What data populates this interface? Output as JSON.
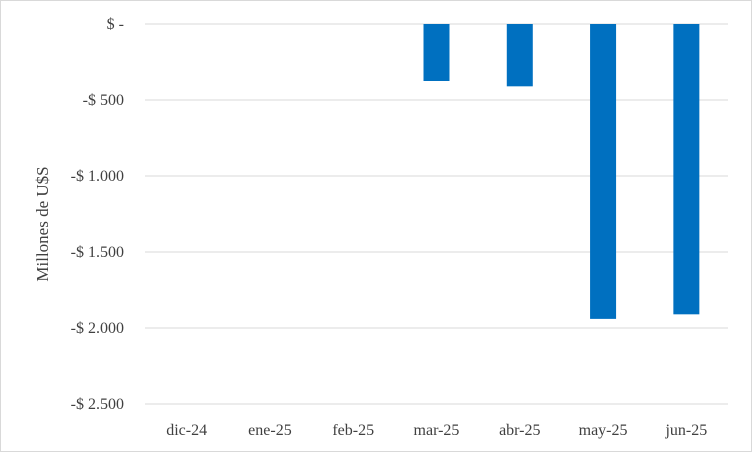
{
  "chart_data": {
    "type": "bar",
    "title": "",
    "xlabel": "",
    "ylabel": "Millones de U$S",
    "categories": [
      "dic-24",
      "ene-25",
      "feb-25",
      "mar-25",
      "abr-25",
      "may-25",
      "jun-25"
    ],
    "values": [
      0,
      0,
      0,
      -375,
      -410,
      -1940,
      -1910
    ],
    "ylim": [
      -2500,
      0
    ],
    "yticks": [
      0,
      -500,
      -1000,
      -1500,
      -2000,
      -2500
    ],
    "ytick_labels": [
      "$ -",
      "-$ 500",
      "-$ 1.000",
      "-$ 1.500",
      "-$ 2.000",
      "-$ 2.500"
    ],
    "grid": true,
    "legend": "none",
    "bar_color": "#0070c0"
  }
}
